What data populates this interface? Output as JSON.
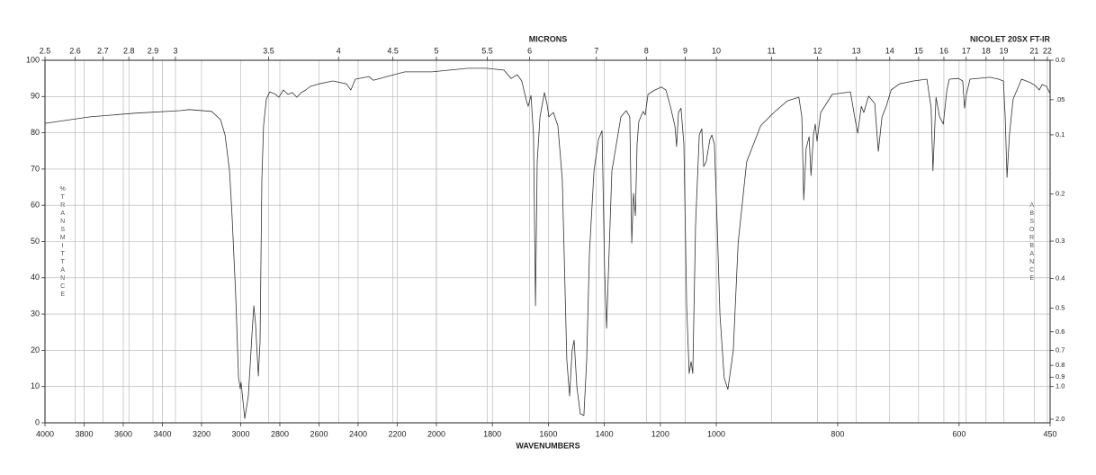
{
  "chart_data": {
    "type": "line",
    "title": "MICRONS",
    "instrument": "NICOLET 20SX FT-IR",
    "xlabel": "WAVENUMBERS",
    "ylabel": "%TRANSMITTANCE",
    "y2label": "ABSORBANCE",
    "color": "#333333",
    "grid": true,
    "x_scale_breaks": [
      2000,
      1000
    ],
    "xlim": [
      4000,
      450
    ],
    "xticks": [
      4000,
      3800,
      3600,
      3400,
      3200,
      3000,
      2800,
      2600,
      2400,
      2200,
      2000,
      1800,
      1600,
      1400,
      1200,
      1000,
      800,
      600,
      450
    ],
    "x2_scale": "reciprocal",
    "x2ticks": [
      2.5,
      2.6,
      2.7,
      2.8,
      2.9,
      3,
      3.5,
      4,
      4.5,
      5,
      5.5,
      6,
      7,
      8,
      9,
      10,
      11,
      12,
      13,
      14,
      15,
      16,
      17,
      18,
      19,
      21,
      22
    ],
    "ylim": [
      0,
      100
    ],
    "yticks": [
      0,
      10,
      20,
      30,
      40,
      50,
      60,
      70,
      80,
      90,
      100
    ],
    "y2_scale": "absorbance",
    "y2ticks": [
      {
        "value": 0,
        "label": "0.0"
      },
      {
        "value": 0.05,
        "label": ".05"
      },
      0.1,
      0.2,
      0.3,
      0.4,
      0.5,
      0.6,
      0.7,
      0.8,
      0.9,
      {
        "value": 1,
        "label": "1.0"
      },
      {
        "value": 2,
        "label": "2.0"
      }
    ],
    "x": [
      4000,
      3770,
      3540,
      3310,
      3264,
      3149,
      3103,
      3080,
      3057,
      3044,
      3025,
      3011,
      3002,
      2998,
      2979,
      2961,
      2942,
      2933,
      2924,
      2910,
      2901,
      2892,
      2883,
      2869,
      2851,
      2828,
      2805,
      2782,
      2759,
      2736,
      2713,
      2690,
      2667,
      2644,
      2598,
      2529,
      2460,
      2437,
      2414,
      2345,
      2322,
      2253,
      2161,
      2023,
      1952,
      1887,
      1823,
      1759,
      1733,
      1711,
      1695,
      1678,
      1672,
      1662,
      1653,
      1646,
      1640,
      1630,
      1614,
      1605,
      1598,
      1592,
      1582,
      1566,
      1550,
      1534,
      1524,
      1515,
      1508,
      1498,
      1486,
      1473,
      1463,
      1453,
      1437,
      1421,
      1408,
      1399,
      1392,
      1383,
      1373,
      1357,
      1341,
      1322,
      1309,
      1302,
      1296,
      1289,
      1283,
      1277,
      1267,
      1261,
      1254,
      1244,
      1219,
      1196,
      1180,
      1164,
      1148,
      1142,
      1135,
      1126,
      1116,
      1106,
      1097,
      1090,
      1084,
      1074,
      1061,
      1052,
      1045,
      1036,
      1023,
      1016,
      1007,
      999,
      994,
      987,
      981,
      972,
      964,
      950,
      927,
      905,
      883,
      864,
      859,
      856,
      852,
      847,
      844,
      840,
      837,
      834,
      828,
      809,
      779,
      772,
      767,
      761,
      757,
      749,
      739,
      733,
      727,
      720,
      712,
      698,
      675,
      653,
      646,
      643,
      638,
      632,
      626,
      620,
      616,
      601,
      594,
      591,
      588,
      582,
      549,
      535,
      527,
      524,
      521,
      517,
      511,
      497,
      482,
      475,
      468,
      463,
      456,
      450
    ],
    "values": [
      82.6,
      84.4,
      85.4,
      86.1,
      86.4,
      85.9,
      83.6,
      79.4,
      69.5,
      57.1,
      34.7,
      12.4,
      9.4,
      11.2,
      1.2,
      7.4,
      24.8,
      32.3,
      27.3,
      12.9,
      22.3,
      67,
      81.9,
      89.3,
      91.3,
      90.8,
      89.8,
      91.8,
      90.6,
      91.1,
      89.8,
      91.1,
      91.8,
      92.8,
      93.5,
      94.3,
      93.5,
      91.8,
      94.8,
      95.5,
      94.5,
      95.5,
      96.8,
      96.8,
      97.3,
      97.8,
      97.8,
      97.3,
      95,
      96,
      94.3,
      88.8,
      87.3,
      90.3,
      79.4,
      32.3,
      72,
      84.4,
      91.1,
      88.1,
      84.4,
      84.9,
      85.6,
      81.9,
      67,
      17.4,
      7.4,
      19.9,
      22.8,
      9.9,
      2.5,
      2,
      17.4,
      47.1,
      69.5,
      78.2,
      80.6,
      42.2,
      26.1,
      47.1,
      69.5,
      76.9,
      84.4,
      86.1,
      84.4,
      49.6,
      63.3,
      57.1,
      76.9,
      83.1,
      84.9,
      85.9,
      84.9,
      90.6,
      91.8,
      92.6,
      91.8,
      87.3,
      81.9,
      76.2,
      85.6,
      86.8,
      76.9,
      32.3,
      13.6,
      16.9,
      13.6,
      54.6,
      79.4,
      81.1,
      70.7,
      72,
      78.2,
      79.4,
      76.9,
      57.1,
      29.8,
      12.4,
      9.2,
      19.9,
      49.6,
      72,
      81.9,
      85.6,
      88.8,
      89.8,
      84.4,
      61.5,
      75.7,
      78.9,
      68.2,
      79.4,
      82.4,
      77.7,
      85.6,
      90.6,
      91.3,
      84.4,
      79.9,
      87.3,
      85.6,
      90.1,
      88.1,
      74.9,
      84.4,
      87.3,
      91.8,
      93.5,
      94.3,
      94.8,
      86.8,
      69.5,
      89.8,
      84.4,
      82.4,
      91.8,
      94.8,
      95,
      94.3,
      86.8,
      90.6,
      94.8,
      95.3,
      94.8,
      94.3,
      84.4,
      67.7,
      79.4,
      89.3,
      94.8,
      93.8,
      93.1,
      91.8,
      93.3,
      92.8,
      90.8
    ]
  }
}
